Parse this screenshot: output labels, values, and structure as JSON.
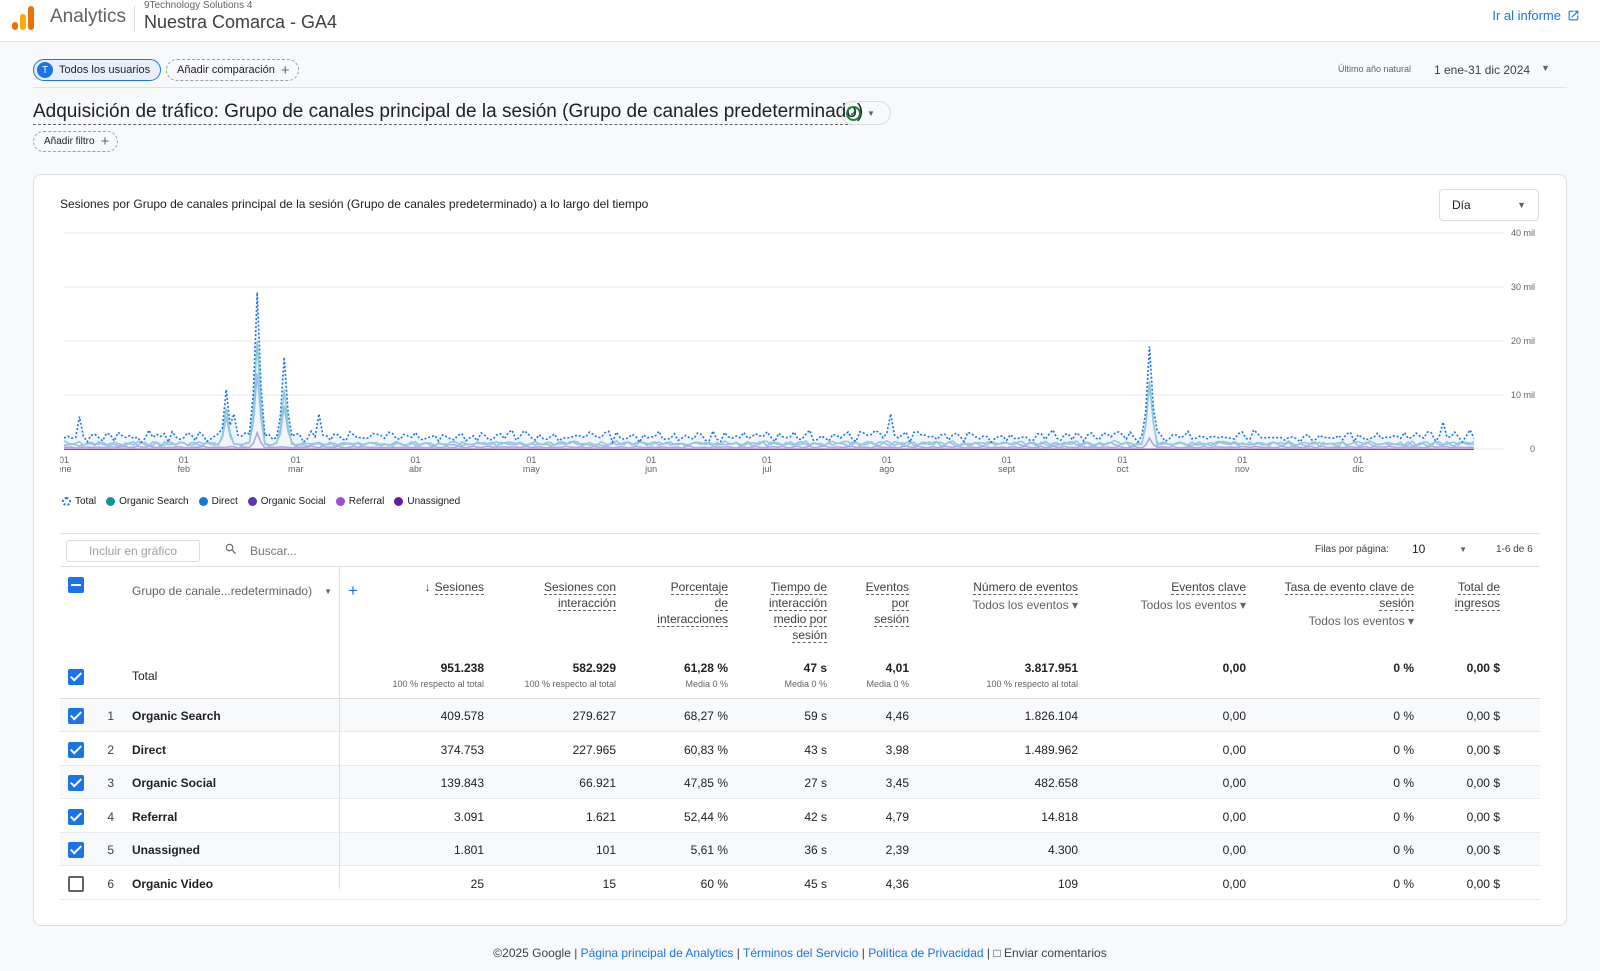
{
  "header": {
    "app_name": "Analytics",
    "account": "9Technology Solutions 4",
    "property": "Nuestra Comarca - GA4",
    "report_link": "Ir al informe"
  },
  "comparison": {
    "segment_badge": "T",
    "segment": "Todos los usuarios",
    "add_comparison": "Añadir comparación",
    "date_label": "Último año natural",
    "date_range": "1 ene-31 dic 2024"
  },
  "report": {
    "title": "Adquisición de tráfico: Grupo de canales principal de la sesión (Grupo de canales predeterminado)",
    "add_filter": "Añadir filtro"
  },
  "chart_data": {
    "type": "line",
    "title": "Sesiones por Grupo de canales principal de la sesión (Grupo de canales predeterminado) a lo largo del tiempo",
    "granularity": "Día",
    "y_ticks": [
      "40 mil",
      "30 mil",
      "20 mil",
      "10 mil",
      "0"
    ],
    "x_ticks": [
      {
        "day": "01",
        "month": "ene"
      },
      {
        "day": "01",
        "month": "feb"
      },
      {
        "day": "01",
        "month": "mar"
      },
      {
        "day": "01",
        "month": "abr"
      },
      {
        "day": "01",
        "month": "may"
      },
      {
        "day": "01",
        "month": "jun"
      },
      {
        "day": "01",
        "month": "jul"
      },
      {
        "day": "01",
        "month": "ago"
      },
      {
        "day": "01",
        "month": "sept"
      },
      {
        "day": "01",
        "month": "oct"
      },
      {
        "day": "01",
        "month": "nov"
      },
      {
        "day": "01",
        "month": "dic"
      }
    ],
    "ylim": [
      0,
      40000
    ],
    "grid": true,
    "legend_position": "bottom-left",
    "series": [
      {
        "name": "Total",
        "color": "#1a73e8",
        "style": "dotted",
        "peaks": [
          {
            "x": "2024-01-05",
            "y": 6000
          },
          {
            "x": "2024-02-12",
            "y": 11000
          },
          {
            "x": "2024-02-14",
            "y": 6500
          },
          {
            "x": "2024-02-19",
            "y": 8000
          },
          {
            "x": "2024-02-20",
            "y": 29000
          },
          {
            "x": "2024-02-27",
            "y": 17000
          },
          {
            "x": "2024-03-07",
            "y": 6500
          },
          {
            "x": "2024-08-02",
            "y": 6500
          },
          {
            "x": "2024-10-08",
            "y": 19000
          },
          {
            "x": "2024-12-23",
            "y": 5000
          }
        ],
        "baseline": 2800
      },
      {
        "name": "Organic Search",
        "color": "#12939a",
        "style": "solid",
        "peaks": [
          {
            "x": "2024-02-12",
            "y": 7500
          },
          {
            "x": "2024-02-20",
            "y": 20000
          },
          {
            "x": "2024-02-27",
            "y": 11000
          },
          {
            "x": "2024-10-08",
            "y": 12000
          }
        ],
        "baseline": 1200
      },
      {
        "name": "Direct",
        "color": "#1976d2",
        "style": "solid",
        "peaks": [
          {
            "x": "2024-02-12",
            "y": 6000
          },
          {
            "x": "2024-02-20",
            "y": 14000
          },
          {
            "x": "2024-02-27",
            "y": 8000
          },
          {
            "x": "2024-10-08",
            "y": 12500
          }
        ],
        "baseline": 1100
      },
      {
        "name": "Organic Social",
        "color": "#5e35b1",
        "style": "solid",
        "peaks": [
          {
            "x": "2024-02-20",
            "y": 3000
          },
          {
            "x": "2024-10-08",
            "y": 2000
          }
        ],
        "baseline": 400
      },
      {
        "name": "Referral",
        "color": "#8e24aa",
        "style": "solid",
        "peaks": [],
        "baseline": 10
      },
      {
        "name": "Unassigned",
        "color": "#6a1b9a",
        "style": "solid",
        "peaks": [],
        "baseline": 5
      }
    ]
  },
  "legend": [
    {
      "name": "Total",
      "color": "#1a73e8",
      "dashed": true
    },
    {
      "name": "Organic Search",
      "color": "#12939a"
    },
    {
      "name": "Direct",
      "color": "#1976d2"
    },
    {
      "name": "Organic Social",
      "color": "#5e35b1"
    },
    {
      "name": "Referral",
      "color": "#9c4dd6"
    },
    {
      "name": "Unassigned",
      "color": "#6a1b9a"
    }
  ],
  "toolbar": {
    "include_in_chart": "Incluir en gráfico",
    "search_placeholder": "Buscar...",
    "rows_per_page_label": "Filas por página:",
    "rows_per_page": "10",
    "pagination": "1-6 de 6"
  },
  "table": {
    "dimension_header": "Grupo de canale...redeterminado)",
    "columns": [
      {
        "lines": [
          "Sesiones"
        ],
        "sort": "↓"
      },
      {
        "lines": [
          "Sesiones con",
          "interacción"
        ]
      },
      {
        "lines": [
          "Porcentaje",
          "de",
          "interacciones"
        ]
      },
      {
        "lines": [
          "Tiempo de",
          "interacción",
          "medio por",
          "sesión"
        ]
      },
      {
        "lines": [
          "Eventos",
          "por",
          "sesión"
        ]
      },
      {
        "lines": [
          "Número de eventos"
        ],
        "sub": "Todos los eventos"
      },
      {
        "lines": [
          "Eventos clave"
        ],
        "sub": "Todos los eventos"
      },
      {
        "lines": [
          "Tasa de evento clave de",
          "sesión"
        ],
        "sub": "Todos los eventos"
      },
      {
        "lines": [
          "Total de",
          "ingresos"
        ]
      }
    ],
    "total": {
      "label": "Total",
      "values": [
        "951.238",
        "582.929",
        "61,28 %",
        "47 s",
        "4,01",
        "3.817.951",
        "0,00",
        "0 %",
        "0,00 $"
      ],
      "subs": [
        "100 % respecto al total",
        "100 % respecto al total",
        "Media 0 %",
        "Media 0 %",
        "Media 0 %",
        "100 % respecto al total",
        "",
        "",
        ""
      ]
    },
    "rows": [
      {
        "idx": "1",
        "name": "Organic Search",
        "checked": true,
        "values": [
          "409.578",
          "279.627",
          "68,27 %",
          "59 s",
          "4,46",
          "1.826.104",
          "0,00",
          "0 %",
          "0,00 $"
        ]
      },
      {
        "idx": "2",
        "name": "Direct",
        "checked": true,
        "values": [
          "374.753",
          "227.965",
          "60,83 %",
          "43 s",
          "3,98",
          "1.489.962",
          "0,00",
          "0 %",
          "0,00 $"
        ]
      },
      {
        "idx": "3",
        "name": "Organic Social",
        "checked": true,
        "values": [
          "139.843",
          "66.921",
          "47,85 %",
          "27 s",
          "3,45",
          "482.658",
          "0,00",
          "0 %",
          "0,00 $"
        ]
      },
      {
        "idx": "4",
        "name": "Referral",
        "checked": true,
        "values": [
          "3.091",
          "1.621",
          "52,44 %",
          "42 s",
          "4,79",
          "14.818",
          "0,00",
          "0 %",
          "0,00 $"
        ]
      },
      {
        "idx": "5",
        "name": "Unassigned",
        "checked": true,
        "values": [
          "1.801",
          "101",
          "5,61 %",
          "36 s",
          "2,39",
          "4.300",
          "0,00",
          "0 %",
          "0,00 $"
        ]
      },
      {
        "idx": "6",
        "name": "Organic Video",
        "checked": false,
        "values": [
          "25",
          "15",
          "60 %",
          "45 s",
          "4,36",
          "109",
          "0,00",
          "0 %",
          "0,00 $"
        ]
      }
    ]
  },
  "footer": {
    "copyright": "©2025 Google |",
    "link1": "Página principal de Analytics",
    "link2": "Términos del Servicio",
    "link3": "Política de Privacidad",
    "feedback": "Enviar comentarios"
  }
}
